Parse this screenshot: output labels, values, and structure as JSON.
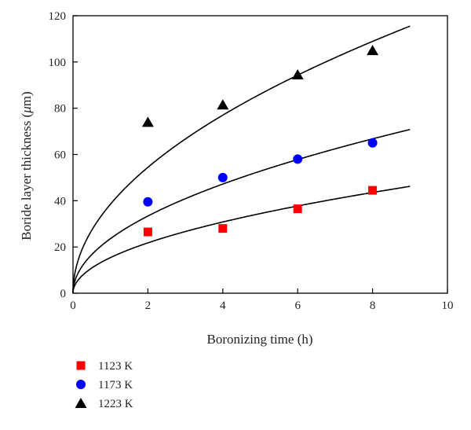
{
  "chart_data": {
    "type": "scatter",
    "xlabel": "Boronizing time (h)",
    "ylabel_prefix": "Boride layer thickness (",
    "ylabel_unit_symbol": "μ",
    "ylabel_suffix": "m)",
    "xlim": [
      0,
      10
    ],
    "ylim": [
      0,
      120
    ],
    "x_ticks": [
      0,
      2,
      4,
      6,
      8,
      10
    ],
    "y_ticks": [
      0,
      20,
      40,
      60,
      80,
      100,
      120
    ],
    "grid": false,
    "legend_position": "bottom-left",
    "series": [
      {
        "name": "1123 K",
        "marker": "square",
        "color": "#ff0000",
        "x": [
          2,
          4,
          6,
          8
        ],
        "y": [
          26.5,
          28,
          36.5,
          44.5
        ],
        "fit": {
          "model": "parabolic",
          "coefficient": 15.4,
          "x_max": 9
        }
      },
      {
        "name": "1173 K",
        "marker": "circle",
        "color": "#0000ff",
        "x": [
          2,
          4,
          6,
          8
        ],
        "y": [
          39.5,
          50,
          58,
          65
        ],
        "fit": {
          "model": "parabolic",
          "coefficient": 23.6,
          "x_max": 9
        }
      },
      {
        "name": "1223 K",
        "marker": "triangle",
        "color": "#000000",
        "x": [
          2,
          4,
          6,
          8
        ],
        "y": [
          74,
          81.5,
          94.5,
          105
        ],
        "fit": {
          "model": "parabolic",
          "coefficient": 38.5,
          "x_max": 9
        }
      }
    ]
  }
}
